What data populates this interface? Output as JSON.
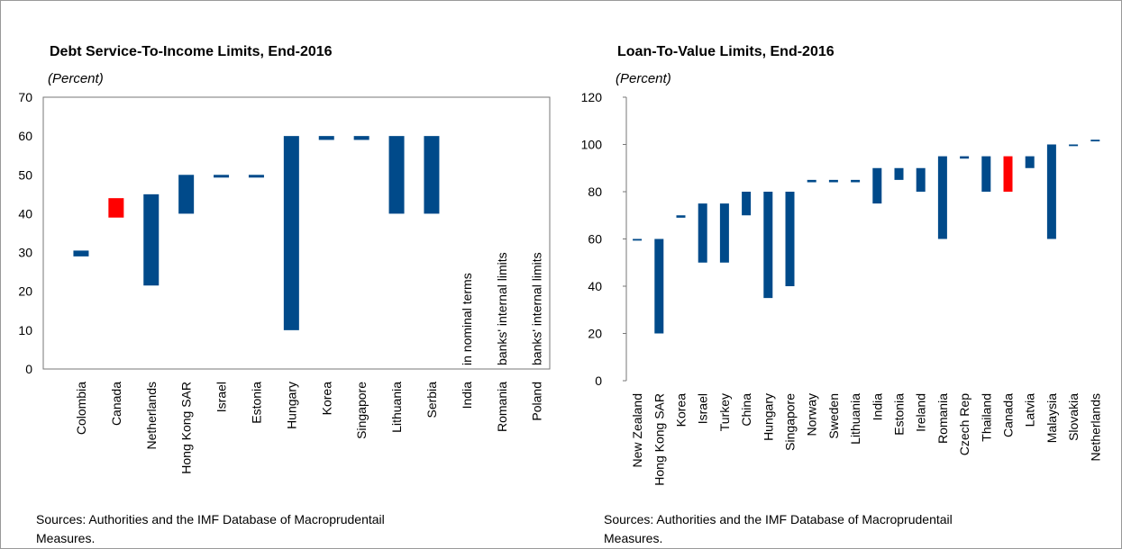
{
  "chart_data": [
    {
      "type": "bar",
      "title": "Debt Service-To-Income  Limits, End-2016",
      "subtitle": "(Percent)",
      "categories": [
        "Colombia",
        "Canada",
        "Netherlands",
        "Hong Kong SAR",
        "Israel",
        "Estonia",
        "Hungary",
        "Korea",
        "Singapore",
        "Lithuania",
        "Serbia",
        "India",
        "Romania",
        "Poland"
      ],
      "low": [
        29,
        39,
        21.5,
        40,
        49.3,
        49.3,
        10,
        59,
        59,
        40,
        40,
        null,
        null,
        null
      ],
      "high": [
        30.5,
        44,
        45,
        50,
        50,
        50,
        60,
        60,
        60,
        60,
        60,
        null,
        null,
        null
      ],
      "colors": [
        "#004a8a",
        "#ff0000",
        "#004a8a",
        "#004a8a",
        "#004a8a",
        "#004a8a",
        "#004a8a",
        "#004a8a",
        "#004a8a",
        "#004a8a",
        "#004a8a",
        "#004a8a",
        "#004a8a",
        "#004a8a"
      ],
      "annotations": [
        null,
        null,
        null,
        null,
        null,
        null,
        null,
        null,
        null,
        null,
        null,
        "in nominal terms",
        "banks' internal limits",
        "banks' internal limits"
      ],
      "ylim": [
        0,
        70
      ],
      "yticks": [
        0,
        10,
        20,
        30,
        40,
        50,
        60,
        70
      ],
      "note": [
        "Sources: Authorities and the IMF Database of Macroprudentail",
        "Measures."
      ]
    },
    {
      "type": "bar",
      "title": "Loan-To-Value Limits, End-2016",
      "subtitle": "(Percent)",
      "categories": [
        "New Zealand",
        "Hong Kong SAR",
        "Korea",
        "Israel",
        "Turkey",
        "China",
        "Hungary",
        "Singapore",
        "Norway",
        "Sweden",
        "Lithuania",
        "India",
        "Estonia",
        "Ireland",
        "Romania",
        "Czech Rep",
        "Thailand",
        "Canada",
        "Latvia",
        "Malaysia",
        "Slovakia",
        "Netherlands"
      ],
      "low": [
        59.3,
        20,
        69,
        50,
        50,
        70,
        35,
        40,
        84,
        84,
        84,
        75,
        85,
        80,
        60,
        94,
        80,
        80,
        90,
        60,
        99.3,
        101.3
      ],
      "high": [
        60,
        60,
        70,
        75,
        75,
        80,
        80,
        80,
        85,
        85,
        85,
        90,
        90,
        90,
        95,
        95,
        95,
        95,
        95,
        100,
        100,
        102
      ],
      "colors": [
        "#004a8a",
        "#004a8a",
        "#004a8a",
        "#004a8a",
        "#004a8a",
        "#004a8a",
        "#004a8a",
        "#004a8a",
        "#004a8a",
        "#004a8a",
        "#004a8a",
        "#004a8a",
        "#004a8a",
        "#004a8a",
        "#004a8a",
        "#004a8a",
        "#004a8a",
        "#ff0000",
        "#004a8a",
        "#004a8a",
        "#004a8a",
        "#004a8a"
      ],
      "ylim": [
        0,
        120
      ],
      "yticks": [
        0,
        20,
        40,
        60,
        80,
        100,
        120
      ],
      "note": [
        "Sources: Authorities and the IMF Database of Macroprudentail",
        "Measures."
      ]
    }
  ]
}
